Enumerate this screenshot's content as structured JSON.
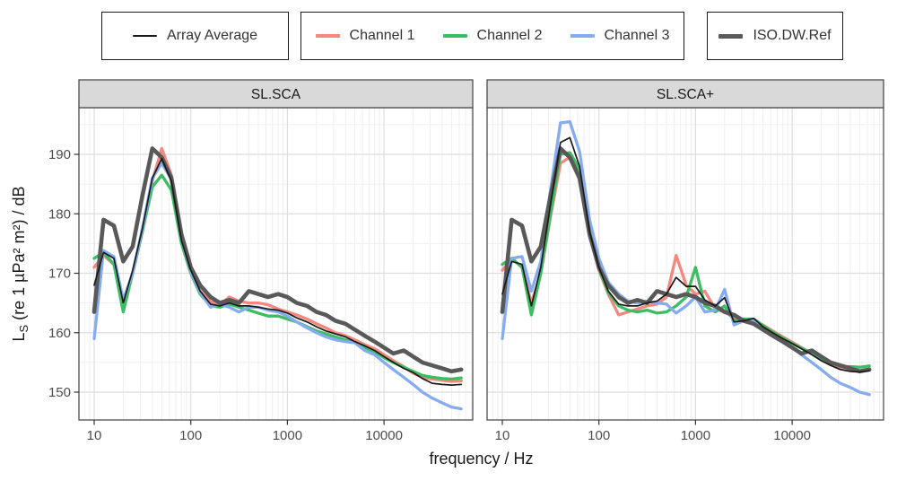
{
  "legend": {
    "groups": [
      {
        "items": [
          {
            "label": "Array Average",
            "color": "#1a1a1a",
            "thickness": 2
          }
        ]
      },
      {
        "items": [
          {
            "label": "Channel 1",
            "color": "#f4877e",
            "thickness": 4
          },
          {
            "label": "Channel 2",
            "color": "#3dbd63",
            "thickness": 4
          },
          {
            "label": "Channel 3",
            "color": "#85abf0",
            "thickness": 4
          }
        ]
      },
      {
        "items": [
          {
            "label": "ISO.DW.Ref",
            "color": "#595959",
            "thickness": 5
          }
        ]
      }
    ]
  },
  "colors": {
    "array_average": "#1a1a1a",
    "channel_1": "#f4877e",
    "channel_2": "#3dbd63",
    "channel_3": "#85abf0",
    "iso_dw_ref": "#595959",
    "strip_bg": "#d9d9d9",
    "panel_border": "#4d4d4d",
    "grid_major": "#dedede",
    "grid_minor": "#efefef",
    "tick_label": "#4d4d4d",
    "axis_title": "#1a1a1a"
  },
  "chart_data": {
    "type": "line",
    "xlabel": "frequency / Hz",
    "ylabel": "L_S (re 1 µPa² m²) / dB",
    "ylabel_parts": {
      "lead": "L",
      "sub": "S",
      "tail": " (re 1 µPa² m²) / dB"
    },
    "x_scale": "log10",
    "x_ticks": [
      10,
      100,
      1000,
      10000
    ],
    "y_ticks": [
      150,
      160,
      170,
      180,
      190
    ],
    "y_minor_ticks": [
      155,
      165,
      175,
      185,
      195
    ],
    "xlim": [
      7,
      83000
    ],
    "ylim": [
      145.3,
      197.9
    ],
    "grid": "major+minor",
    "legend_position": "top",
    "frequencies": [
      10,
      12.5,
      16,
      20,
      25,
      31.5,
      40,
      50,
      63,
      80,
      100,
      125,
      160,
      200,
      250,
      315,
      400,
      500,
      630,
      800,
      1000,
      1250,
      1600,
      2000,
      2500,
      3150,
      4000,
      5000,
      6300,
      8000,
      10000,
      12500,
      16000,
      20000,
      25000,
      31500,
      40000,
      50000,
      63000
    ],
    "panels": [
      {
        "label": "SL.SCA",
        "series": [
          {
            "name": "Array Average",
            "color": "#1a1a1a",
            "width": 1.7,
            "values": [
              168,
              173.5,
              172.5,
              165,
              170.5,
              177.5,
              186,
              189.3,
              185.5,
              175.5,
              170.5,
              167,
              164.8,
              164.5,
              165,
              164.5,
              164.5,
              164.3,
              164,
              163.8,
              163.3,
              162.5,
              161.8,
              161,
              160.3,
              159.8,
              159.3,
              158.5,
              157.8,
              157,
              156,
              155,
              154,
              153.3,
              152.3,
              151.5,
              151.3,
              151.2,
              151.3
            ]
          },
          {
            "name": "Channel 1",
            "color": "#f4877e",
            "width": 3.3,
            "values": [
              171,
              173,
              171.5,
              165.5,
              170,
              177,
              185.5,
              191,
              186.5,
              176,
              170.5,
              167,
              165.2,
              164.7,
              166,
              165.3,
              165,
              165,
              164.7,
              164,
              163.5,
              163,
              162.3,
              161.5,
              160.8,
              160,
              159.5,
              158.8,
              158,
              157.3,
              156.3,
              155.3,
              154.3,
              153.2,
              152.5,
              152.2,
              152,
              151.8,
              151.9
            ]
          },
          {
            "name": "Channel 2",
            "color": "#3dbd63",
            "width": 3.3,
            "values": [
              172.5,
              173.5,
              171.5,
              163.5,
              170,
              177,
              184.5,
              186.5,
              184,
              175,
              170,
              166.5,
              164.5,
              164.3,
              164.8,
              164.3,
              163.8,
              163.3,
              162.8,
              162.8,
              162.3,
              161.8,
              161,
              160.3,
              159.8,
              159.3,
              158.8,
              158.3,
              157.5,
              156.8,
              155.8,
              155,
              154.2,
              153.5,
              152.8,
              152.5,
              152.3,
              152.2,
              152.4
            ]
          },
          {
            "name": "Channel 3",
            "color": "#85abf0",
            "width": 3.3,
            "values": [
              159,
              173.8,
              172.8,
              165.5,
              170,
              177.5,
              186,
              188.5,
              185.8,
              175.8,
              170.3,
              166.8,
              164.3,
              164.8,
              164.3,
              163.5,
              164.3,
              164.3,
              163.8,
              163.5,
              162.8,
              161.8,
              160.8,
              160,
              159.3,
              158.8,
              158.5,
              158.3,
              157,
              156.3,
              155,
              153.8,
              152.5,
              151.3,
              150,
              149,
              148.2,
              147.5,
              147.2
            ]
          },
          {
            "name": "ISO.DW.Ref",
            "color": "#595959",
            "width": 4.6,
            "values": [
              163.5,
              179,
              178,
              172,
              174.5,
              183,
              191,
              189.5,
              186,
              176.5,
              171,
              168,
              166,
              165,
              165.5,
              165,
              167,
              166.5,
              166,
              166.5,
              166,
              165,
              164.5,
              163.5,
              163,
              162,
              161.5,
              160.5,
              159.5,
              158.5,
              157.5,
              156.5,
              157,
              156,
              155,
              154.5,
              154,
              153.5,
              153.8
            ]
          }
        ]
      },
      {
        "label": "SL.SCA+",
        "series": [
          {
            "name": "Array Average",
            "color": "#1a1a1a",
            "width": 1.7,
            "values": [
              166.5,
              172,
              171.5,
              164.5,
              171,
              181.5,
              192,
              192.8,
              188,
              177,
              171,
              167,
              164.8,
              164.5,
              164.5,
              165,
              165.3,
              166.5,
              169.3,
              167.8,
              167.8,
              165.5,
              164.5,
              165.9,
              161.8,
              162,
              162.4,
              161,
              160,
              159,
              158.2,
              157.3,
              156.3,
              155.3,
              154.5,
              153.8,
              153.5,
              153.4,
              153.6
            ]
          },
          {
            "name": "Channel 1",
            "color": "#f4877e",
            "width": 3.3,
            "values": [
              170.5,
              172.5,
              171,
              165,
              170,
              179.5,
              188.5,
              189.5,
              186.5,
              176.5,
              170.5,
              166.5,
              163,
              163.5,
              164,
              164.5,
              164.8,
              166,
              173,
              168,
              166.5,
              167,
              164,
              163.5,
              162.5,
              162.3,
              162,
              161.3,
              160.3,
              159.3,
              158.4,
              157.5,
              156.5,
              155.5,
              154.8,
              154,
              153.6,
              153.5,
              153.8
            ]
          },
          {
            "name": "Channel 2",
            "color": "#3dbd63",
            "width": 3.3,
            "values": [
              171.5,
              172.5,
              171,
              163,
              170,
              180,
              190,
              190.3,
              187.5,
              177,
              170.8,
              166.8,
              164.5,
              163.8,
              163.5,
              163.8,
              163.3,
              163.5,
              164.5,
              166,
              171,
              164.5,
              163.5,
              164.5,
              162,
              162.3,
              162.3,
              161.2,
              160.1,
              159.1,
              158.2,
              157.4,
              156.5,
              155.5,
              155,
              154.3,
              154.3,
              154.2,
              154.4
            ]
          },
          {
            "name": "Channel 3",
            "color": "#85abf0",
            "width": 3.3,
            "values": [
              159,
              172.5,
              172.8,
              167,
              172,
              184,
              195.3,
              195.5,
              190.5,
              179,
              172.5,
              168.5,
              166.5,
              165.3,
              165,
              165.3,
              165,
              164.8,
              163.3,
              164.5,
              166,
              163.5,
              163.8,
              167.3,
              161.3,
              162,
              162,
              160.8,
              159.8,
              158.8,
              157.5,
              156.3,
              155,
              153.8,
              152.5,
              151.5,
              150.8,
              150,
              149.6
            ]
          },
          {
            "name": "ISO.DW.Ref",
            "color": "#595959",
            "width": 4.6,
            "values": [
              163.5,
              179,
              178,
              172,
              174.5,
              183,
              191,
              189.5,
              186,
              176.5,
              171,
              168,
              166,
              165,
              165.5,
              165,
              167,
              166.5,
              166,
              166.5,
              166,
              165,
              164.5,
              163.5,
              163,
              162,
              161.5,
              160.5,
              159.5,
              158.5,
              157.5,
              156.5,
              157,
              156,
              155,
              154.5,
              154,
              153.5,
              153.8
            ]
          }
        ]
      }
    ]
  }
}
